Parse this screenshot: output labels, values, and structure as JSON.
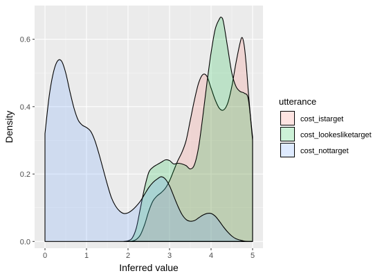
{
  "chart_data": {
    "type": "area",
    "xlabel": "Inferred value",
    "ylabel": "Density",
    "xlim": [
      -0.25,
      5.25
    ],
    "ylim": [
      -0.02,
      0.7
    ],
    "x_ticks": [
      "0",
      "1",
      "2",
      "3",
      "4",
      "5"
    ],
    "y_ticks": [
      "0.0",
      "0.2",
      "0.4",
      "0.6"
    ],
    "grid": true,
    "legend": {
      "title": "utterance",
      "position": "right"
    },
    "series": [
      {
        "name": "cost_istarget",
        "color": "#F8766D",
        "points": [
          [
            2.0,
            0.0
          ],
          [
            2.1,
            0.001
          ],
          [
            2.2,
            0.006
          ],
          [
            2.3,
            0.02
          ],
          [
            2.4,
            0.05
          ],
          [
            2.5,
            0.09
          ],
          [
            2.6,
            0.12
          ],
          [
            2.7,
            0.135
          ],
          [
            2.8,
            0.145
          ],
          [
            2.9,
            0.158
          ],
          [
            3.0,
            0.18
          ],
          [
            3.1,
            0.21
          ],
          [
            3.2,
            0.24
          ],
          [
            3.3,
            0.265
          ],
          [
            3.4,
            0.3
          ],
          [
            3.5,
            0.36
          ],
          [
            3.6,
            0.42
          ],
          [
            3.7,
            0.47
          ],
          [
            3.8,
            0.495
          ],
          [
            3.9,
            0.49
          ],
          [
            4.0,
            0.455
          ],
          [
            4.1,
            0.42
          ],
          [
            4.2,
            0.395
          ],
          [
            4.3,
            0.39
          ],
          [
            4.4,
            0.41
          ],
          [
            4.5,
            0.46
          ],
          [
            4.6,
            0.53
          ],
          [
            4.7,
            0.59
          ],
          [
            4.75,
            0.605
          ],
          [
            4.8,
            0.58
          ],
          [
            4.85,
            0.52
          ],
          [
            4.9,
            0.44
          ],
          [
            4.95,
            0.37
          ],
          [
            5.0,
            0.31
          ]
        ]
      },
      {
        "name": "cost_lookesliketarget",
        "color": "#00BA38",
        "points": [
          [
            1.9,
            0.0
          ],
          [
            2.0,
            0.002
          ],
          [
            2.1,
            0.01
          ],
          [
            2.2,
            0.04
          ],
          [
            2.3,
            0.1
          ],
          [
            2.4,
            0.16
          ],
          [
            2.5,
            0.205
          ],
          [
            2.6,
            0.22
          ],
          [
            2.7,
            0.228
          ],
          [
            2.8,
            0.235
          ],
          [
            2.9,
            0.242
          ],
          [
            3.0,
            0.24
          ],
          [
            3.1,
            0.23
          ],
          [
            3.2,
            0.232
          ],
          [
            3.3,
            0.23
          ],
          [
            3.4,
            0.225
          ],
          [
            3.5,
            0.215
          ],
          [
            3.6,
            0.228
          ],
          [
            3.7,
            0.28
          ],
          [
            3.8,
            0.37
          ],
          [
            3.9,
            0.47
          ],
          [
            4.0,
            0.56
          ],
          [
            4.1,
            0.63
          ],
          [
            4.2,
            0.66
          ],
          [
            4.25,
            0.665
          ],
          [
            4.3,
            0.65
          ],
          [
            4.4,
            0.575
          ],
          [
            4.5,
            0.5
          ],
          [
            4.6,
            0.46
          ],
          [
            4.7,
            0.445
          ],
          [
            4.8,
            0.44
          ],
          [
            4.9,
            0.42
          ],
          [
            5.0,
            0.3
          ]
        ]
      },
      {
        "name": "cost_nottarget",
        "color": "#619CFF",
        "points": [
          [
            0.0,
            0.32
          ],
          [
            0.1,
            0.43
          ],
          [
            0.2,
            0.5
          ],
          [
            0.3,
            0.535
          ],
          [
            0.4,
            0.535
          ],
          [
            0.5,
            0.5
          ],
          [
            0.6,
            0.445
          ],
          [
            0.7,
            0.395
          ],
          [
            0.8,
            0.36
          ],
          [
            0.9,
            0.345
          ],
          [
            1.0,
            0.338
          ],
          [
            1.1,
            0.327
          ],
          [
            1.2,
            0.3
          ],
          [
            1.3,
            0.26
          ],
          [
            1.4,
            0.215
          ],
          [
            1.5,
            0.17
          ],
          [
            1.6,
            0.13
          ],
          [
            1.7,
            0.105
          ],
          [
            1.8,
            0.09
          ],
          [
            1.9,
            0.083
          ],
          [
            2.0,
            0.085
          ],
          [
            2.1,
            0.093
          ],
          [
            2.2,
            0.105
          ],
          [
            2.3,
            0.12
          ],
          [
            2.4,
            0.14
          ],
          [
            2.5,
            0.16
          ],
          [
            2.6,
            0.175
          ],
          [
            2.7,
            0.185
          ],
          [
            2.8,
            0.192
          ],
          [
            2.9,
            0.185
          ],
          [
            3.0,
            0.165
          ],
          [
            3.1,
            0.135
          ],
          [
            3.2,
            0.105
          ],
          [
            3.3,
            0.08
          ],
          [
            3.4,
            0.065
          ],
          [
            3.5,
            0.06
          ],
          [
            3.6,
            0.062
          ],
          [
            3.7,
            0.07
          ],
          [
            3.8,
            0.078
          ],
          [
            3.9,
            0.083
          ],
          [
            4.0,
            0.083
          ],
          [
            4.1,
            0.075
          ],
          [
            4.2,
            0.06
          ],
          [
            4.3,
            0.043
          ],
          [
            4.4,
            0.028
          ],
          [
            4.5,
            0.016
          ],
          [
            4.6,
            0.008
          ],
          [
            4.7,
            0.004
          ],
          [
            4.8,
            0.001
          ],
          [
            4.9,
            0.0
          ],
          [
            5.0,
            0.0
          ]
        ]
      }
    ]
  }
}
